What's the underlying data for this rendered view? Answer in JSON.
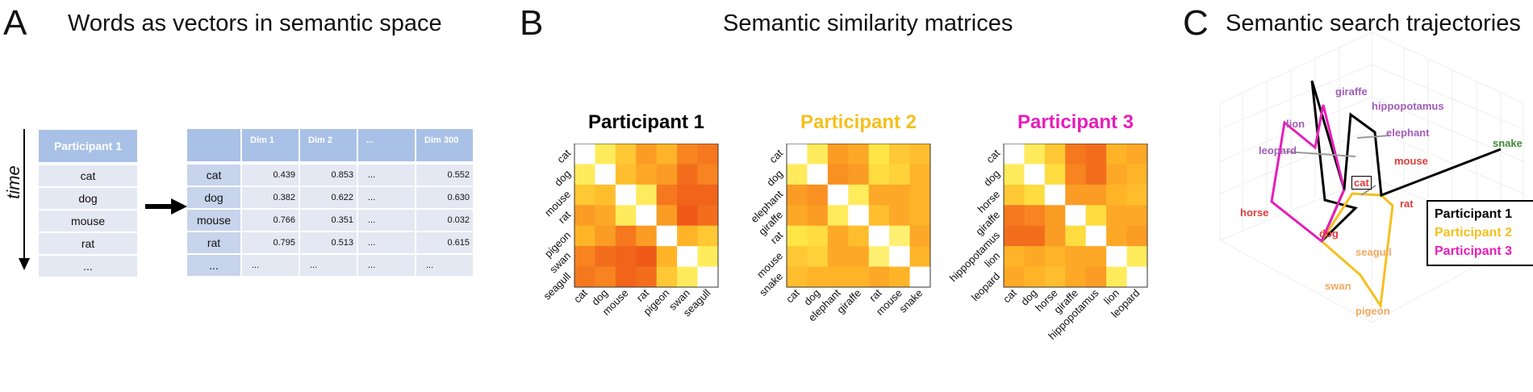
{
  "panels": {
    "a": {
      "letter": "A",
      "title": "Words as vectors in semantic space"
    },
    "b": {
      "letter": "B",
      "title": "Semantic similarity matrices"
    },
    "c": {
      "letter": "C",
      "title": "Semantic search trajectories"
    }
  },
  "word_list": {
    "time_label": "time",
    "header": "Participant 1",
    "words": [
      "cat",
      "dog",
      "mouse",
      "rat",
      "..."
    ]
  },
  "vector_table": {
    "headers": [
      "Dim 1",
      "Dim 2",
      "...",
      "Dim 300"
    ],
    "rows": [
      {
        "word": "cat",
        "values": [
          "0.439",
          "0.853",
          "...",
          "0.552"
        ]
      },
      {
        "word": "dog",
        "values": [
          "0.382",
          "0.622",
          "...",
          "0.630"
        ]
      },
      {
        "word": "mouse",
        "values": [
          "0.766",
          "0.351",
          "...",
          "0.032"
        ]
      },
      {
        "word": "rat",
        "values": [
          "0.795",
          "0.513",
          "...",
          "0.615"
        ]
      },
      {
        "word": "...",
        "values": [
          "...",
          "...",
          "...",
          "..."
        ]
      }
    ]
  },
  "matrices": [
    {
      "title": "Participant 1",
      "color": "#000000",
      "labels": [
        "cat",
        "dog",
        "mouse",
        "rat",
        "pigeon",
        "swan",
        "seagull"
      ]
    },
    {
      "title": "Participant 2",
      "color": "#F5C01E",
      "labels": [
        "cat",
        "dog",
        "elephant",
        "giraffe",
        "rat",
        "mouse",
        "snake"
      ]
    },
    {
      "title": "Participant 3",
      "color": "#E61EBA",
      "labels": [
        "cat",
        "dog",
        "horse",
        "giraffe",
        "hippopotamus",
        "lion",
        "leopard"
      ]
    }
  ],
  "trajectories": {
    "words": [
      {
        "text": "giraffe",
        "color": "#A35DB8"
      },
      {
        "text": "hippopotamus",
        "color": "#A35DB8"
      },
      {
        "text": "lion",
        "color": "#A35DB8"
      },
      {
        "text": "elephant",
        "color": "#A35DB8"
      },
      {
        "text": "leopard",
        "color": "#A35DB8"
      },
      {
        "text": "mouse",
        "color": "#E03C3C"
      },
      {
        "text": "cat",
        "color": "#E03C3C"
      },
      {
        "text": "rat",
        "color": "#E03C3C"
      },
      {
        "text": "horse",
        "color": "#E03C3C"
      },
      {
        "text": "dog",
        "color": "#E03C3C"
      },
      {
        "text": "snake",
        "color": "#3D8B37"
      },
      {
        "text": "seagull",
        "color": "#F0A860"
      },
      {
        "text": "swan",
        "color": "#F0A860"
      },
      {
        "text": "pigeon",
        "color": "#F0A860"
      }
    ],
    "legend": [
      {
        "text": "Participant 1",
        "color": "#000000"
      },
      {
        "text": "Participant 2",
        "color": "#F5C01E"
      },
      {
        "text": "Participant 3",
        "color": "#E61EBA"
      }
    ]
  }
}
